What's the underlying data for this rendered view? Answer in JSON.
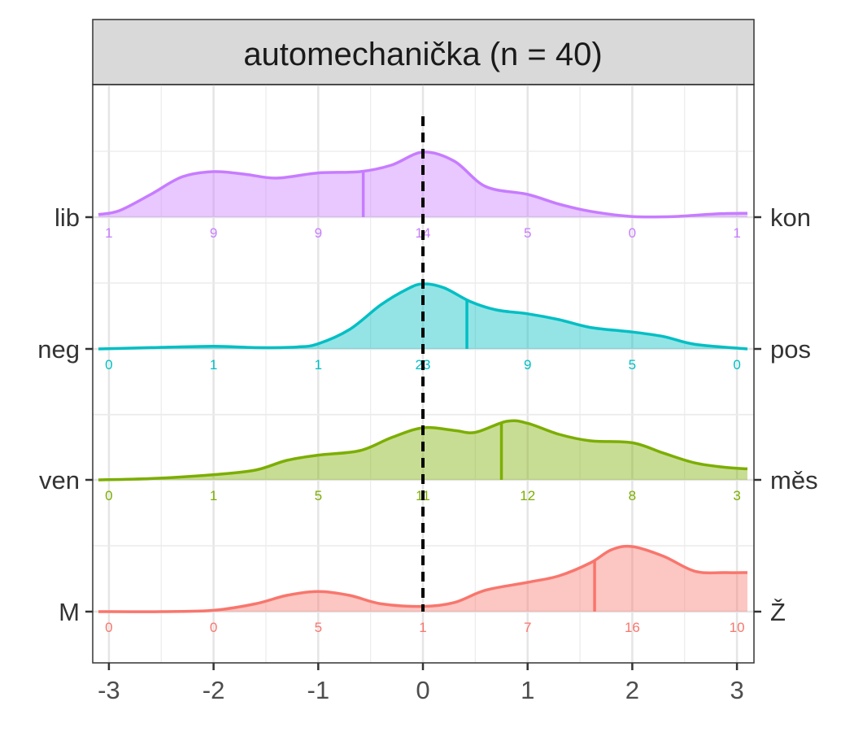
{
  "chart_data": {
    "type": "ridgeline",
    "title": "automechanička (n = 40)",
    "xlim": [
      -3.1,
      3.1
    ],
    "x_ticks": [
      -3,
      -2,
      -1,
      0,
      1,
      2,
      3
    ],
    "x_tick_labels": [
      "-3",
      "-2",
      "-1",
      "0",
      "1",
      "2",
      "3"
    ],
    "grid": true,
    "reference_line": {
      "x": 0,
      "style": "dashed",
      "color": "#000000"
    },
    "series": [
      {
        "left_label": "lib",
        "right_label": "kon",
        "color": "#C77CFF",
        "counts_x": [
          -3,
          -2,
          -1,
          0,
          1,
          2,
          3
        ],
        "counts": [
          "1",
          "9",
          "9",
          "14",
          "5",
          "0",
          "1"
        ],
        "mean": -0.57,
        "density": [
          [
            -3.1,
            0.04
          ],
          [
            -2.9,
            0.1
          ],
          [
            -2.6,
            0.35
          ],
          [
            -2.3,
            0.62
          ],
          [
            -2.0,
            0.7
          ],
          [
            -1.7,
            0.66
          ],
          [
            -1.4,
            0.6
          ],
          [
            -1.0,
            0.68
          ],
          [
            -0.6,
            0.7
          ],
          [
            -0.3,
            0.8
          ],
          [
            0.0,
            1.0
          ],
          [
            0.3,
            0.86
          ],
          [
            0.6,
            0.47
          ],
          [
            1.0,
            0.35
          ],
          [
            1.3,
            0.2
          ],
          [
            1.6,
            0.09
          ],
          [
            2.0,
            0.01
          ],
          [
            2.4,
            0.01
          ],
          [
            2.8,
            0.05
          ],
          [
            3.1,
            0.06
          ]
        ]
      },
      {
        "left_label": "neg",
        "right_label": "pos",
        "color": "#00BFC4",
        "counts_x": [
          -3,
          -2,
          -1,
          0,
          1,
          2,
          3
        ],
        "counts": [
          "0",
          "1",
          "1",
          "23",
          "9",
          "5",
          "0"
        ],
        "mean": 0.42,
        "density": [
          [
            -3.1,
            0.0
          ],
          [
            -2.6,
            0.02
          ],
          [
            -2.0,
            0.04
          ],
          [
            -1.6,
            0.02
          ],
          [
            -1.2,
            0.03
          ],
          [
            -1.0,
            0.08
          ],
          [
            -0.7,
            0.3
          ],
          [
            -0.4,
            0.68
          ],
          [
            -0.15,
            0.92
          ],
          [
            0.0,
            1.0
          ],
          [
            0.2,
            0.94
          ],
          [
            0.45,
            0.73
          ],
          [
            0.7,
            0.6
          ],
          [
            1.0,
            0.54
          ],
          [
            1.3,
            0.45
          ],
          [
            1.6,
            0.33
          ],
          [
            2.0,
            0.26
          ],
          [
            2.3,
            0.19
          ],
          [
            2.6,
            0.07
          ],
          [
            3.1,
            0.0
          ]
        ]
      },
      {
        "left_label": "ven",
        "right_label": "měs",
        "color": "#7CAE00",
        "counts_x": [
          -3,
          -2,
          -1,
          0,
          1,
          2,
          3
        ],
        "counts": [
          "0",
          "1",
          "5",
          "11",
          "12",
          "8",
          "3"
        ],
        "mean": 0.75,
        "density": [
          [
            -3.1,
            0.0
          ],
          [
            -2.6,
            0.02
          ],
          [
            -2.0,
            0.08
          ],
          [
            -1.6,
            0.15
          ],
          [
            -1.3,
            0.3
          ],
          [
            -1.0,
            0.38
          ],
          [
            -0.6,
            0.45
          ],
          [
            -0.3,
            0.65
          ],
          [
            0.0,
            0.8
          ],
          [
            0.3,
            0.76
          ],
          [
            0.5,
            0.73
          ],
          [
            0.8,
            0.9
          ],
          [
            1.0,
            0.87
          ],
          [
            1.3,
            0.7
          ],
          [
            1.6,
            0.6
          ],
          [
            2.0,
            0.57
          ],
          [
            2.3,
            0.41
          ],
          [
            2.6,
            0.26
          ],
          [
            2.9,
            0.19
          ],
          [
            3.1,
            0.17
          ]
        ]
      },
      {
        "left_label": "M",
        "right_label": "Ž",
        "color": "#F8766D",
        "counts_x": [
          -3,
          -2,
          -1,
          0,
          1,
          2,
          3
        ],
        "counts": [
          "0",
          "0",
          "5",
          "1",
          "7",
          "16",
          "10"
        ],
        "mean": 1.64,
        "density": [
          [
            -3.1,
            0.0
          ],
          [
            -2.5,
            0.0
          ],
          [
            -2.0,
            0.02
          ],
          [
            -1.6,
            0.12
          ],
          [
            -1.3,
            0.25
          ],
          [
            -1.0,
            0.31
          ],
          [
            -0.7,
            0.25
          ],
          [
            -0.4,
            0.12
          ],
          [
            0.0,
            0.08
          ],
          [
            0.3,
            0.14
          ],
          [
            0.6,
            0.33
          ],
          [
            1.0,
            0.45
          ],
          [
            1.3,
            0.55
          ],
          [
            1.6,
            0.75
          ],
          [
            1.8,
            0.95
          ],
          [
            2.0,
            1.0
          ],
          [
            2.3,
            0.85
          ],
          [
            2.6,
            0.62
          ],
          [
            2.9,
            0.6
          ],
          [
            3.1,
            0.6
          ]
        ]
      }
    ]
  }
}
